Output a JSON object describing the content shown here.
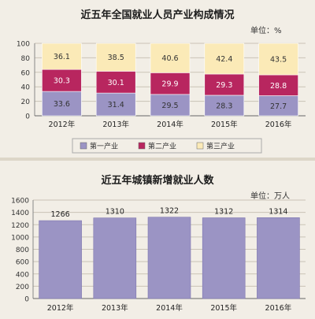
{
  "chart_data": [
    {
      "type": "bar",
      "stacked": true,
      "title": "近五年全国就业人员产业构成情况",
      "unit_label": "单位：%",
      "categories": [
        "2012年",
        "2013年",
        "2014年",
        "2015年",
        "2016年"
      ],
      "ylim": [
        0,
        100
      ],
      "yticks": [
        0,
        20,
        40,
        60,
        80,
        100
      ],
      "grid": true,
      "legend_position": "bottom",
      "series": [
        {
          "name": "第一产业",
          "color": "#9b94c4",
          "values": [
            33.6,
            31.4,
            29.5,
            28.3,
            27.7
          ],
          "labels": [
            "33.6",
            "31.4",
            "29.5",
            "28.3",
            "27.7"
          ]
        },
        {
          "name": "第二产业",
          "color": "#b8265f",
          "values": [
            30.3,
            30.1,
            29.9,
            29.3,
            28.8
          ],
          "labels": [
            "30.3",
            "30.1",
            "29.9",
            "29.3",
            "28.8"
          ]
        },
        {
          "name": "第三产业",
          "color": "#fbeab7",
          "values": [
            36.1,
            38.5,
            40.6,
            42.4,
            43.5
          ],
          "labels": [
            "36.1",
            "38.5",
            "40.6",
            "42.4",
            "43.5"
          ]
        }
      ]
    },
    {
      "type": "bar",
      "title": "近五年城镇新增就业人数",
      "unit_label": "单位：万人",
      "categories": [
        "2012年",
        "2013年",
        "2014年",
        "2015年",
        "2016年"
      ],
      "values": [
        1266,
        1310,
        1322,
        1312,
        1314
      ],
      "labels": [
        "1266",
        "1310",
        "1322",
        "1312",
        "1314"
      ],
      "ylim": [
        0,
        1600
      ],
      "yticks": [
        0,
        200,
        400,
        600,
        800,
        1000,
        1200,
        1400,
        1600
      ],
      "grid": true,
      "color": "#9b94c4"
    }
  ]
}
